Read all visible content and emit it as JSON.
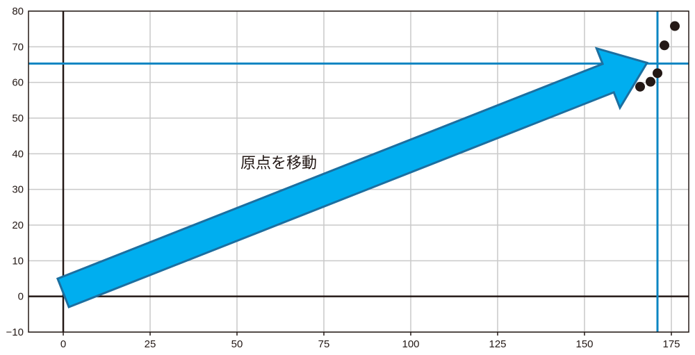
{
  "chart_data": {
    "type": "scatter",
    "title": "",
    "xlabel": "",
    "ylabel": "",
    "xlim": [
      -10,
      180
    ],
    "ylim": [
      -10,
      80
    ],
    "xticks": [
      0,
      25,
      50,
      75,
      100,
      125,
      150,
      175
    ],
    "yticks": [
      -10,
      0,
      10,
      20,
      30,
      40,
      50,
      60,
      70,
      80
    ],
    "grid": true,
    "series": [
      {
        "points": [
          {
            "x": 166,
            "y": 58.8
          },
          {
            "x": 169,
            "y": 60.2
          },
          {
            "x": 171,
            "y": 62.6
          },
          {
            "x": 173,
            "y": 70.4
          },
          {
            "x": 176,
            "y": 75.8
          }
        ]
      }
    ],
    "reference_lines": {
      "x": 171,
      "y": 65.3
    },
    "arrow": {
      "from": {
        "x": 0,
        "y": 1
      },
      "to": {
        "x": 168,
        "y": 65.5
      }
    },
    "annotation": {
      "text": "原点を移動",
      "x": 51,
      "y": 36
    },
    "colors": {
      "points": "#231815",
      "reference": "#0b86c3",
      "arrow_fill": "#00aeef",
      "arrow_stroke": "#1c6fa0",
      "grid": "#c9c9c9",
      "axis": "#231815"
    }
  }
}
